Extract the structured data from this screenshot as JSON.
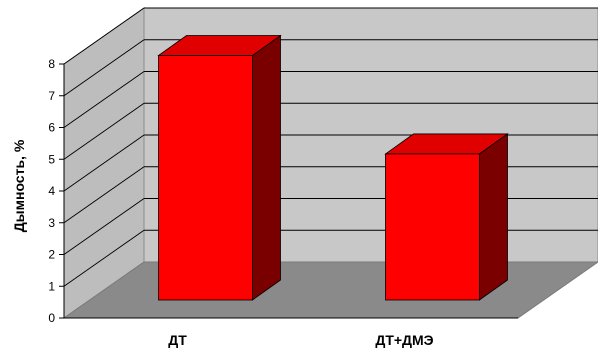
{
  "chart_data": {
    "type": "bar",
    "style": "3d-column",
    "categories": [
      "ДТ",
      "ДТ+ДМЭ"
    ],
    "values": [
      7.7,
      4.6
    ],
    "ylabel": "Дымность, %",
    "ylim": [
      0,
      8
    ],
    "yticks": [
      "0",
      "1",
      "2",
      "3",
      "4",
      "5",
      "6",
      "7",
      "8"
    ],
    "grid": true,
    "legend": "none"
  },
  "colors": {
    "bar_front": "#ff0000",
    "bar_top": "#e00000",
    "bar_side": "#7a0000",
    "back_wall": "#c8c8c8",
    "side_wall": "#bdbdbd",
    "floor": "#8a8a8a",
    "gridline": "#000000"
  }
}
